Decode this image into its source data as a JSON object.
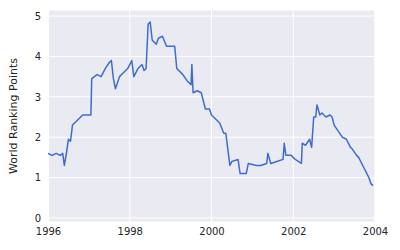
{
  "chart_data": {
    "type": "line",
    "y_label": "World Ranking Points",
    "x": [
      1996.0,
      1996.1,
      1996.2,
      1996.3,
      1996.36,
      1996.4,
      1996.45,
      1996.5,
      1996.55,
      1996.6,
      1996.7,
      1996.85,
      1997.05,
      1997.07,
      1997.2,
      1997.3,
      1997.4,
      1997.5,
      1997.55,
      1997.6,
      1997.65,
      1997.75,
      1997.85,
      1997.95,
      1998.05,
      1998.1,
      1998.2,
      1998.3,
      1998.35,
      1998.4,
      1998.45,
      1998.5,
      1998.55,
      1998.65,
      1998.7,
      1998.8,
      1998.9,
      1999.1,
      1999.15,
      1999.3,
      1999.4,
      1999.5,
      1999.52,
      1999.55,
      1999.65,
      1999.75,
      1999.85,
      1999.95,
      2000.0,
      2000.1,
      2000.2,
      2000.3,
      2000.35,
      2000.45,
      2000.5,
      2000.65,
      2000.7,
      2000.85,
      2000.9,
      2001.1,
      2001.2,
      2001.35,
      2001.38,
      2001.45,
      2001.6,
      2001.75,
      2001.78,
      2001.82,
      2001.95,
      2002.05,
      2002.2,
      2002.22,
      2002.3,
      2002.4,
      2002.45,
      2002.5,
      2002.55,
      2002.58,
      2002.65,
      2002.7,
      2002.8,
      2002.9,
      2002.95,
      2003.0,
      2003.1,
      2003.2,
      2003.3,
      2003.4,
      2003.45,
      2003.55,
      2003.6,
      2003.7,
      2003.75,
      2003.85,
      2003.9,
      2003.95
    ],
    "values": [
      1.6,
      1.55,
      1.6,
      1.55,
      1.6,
      1.3,
      1.6,
      1.95,
      1.9,
      2.3,
      2.4,
      2.55,
      2.55,
      3.45,
      3.55,
      3.5,
      3.7,
      3.85,
      3.9,
      3.45,
      3.2,
      3.5,
      3.6,
      3.7,
      3.9,
      3.5,
      3.7,
      3.8,
      3.65,
      3.7,
      4.8,
      4.85,
      4.4,
      4.3,
      4.45,
      4.5,
      4.25,
      4.25,
      3.7,
      3.55,
      3.4,
      3.3,
      3.8,
      3.1,
      3.15,
      3.1,
      2.7,
      2.7,
      2.55,
      2.45,
      2.35,
      2.1,
      2.1,
      1.3,
      1.4,
      1.45,
      1.1,
      1.1,
      1.35,
      1.3,
      1.3,
      1.35,
      1.6,
      1.35,
      1.4,
      1.45,
      1.85,
      1.55,
      1.55,
      1.45,
      1.35,
      1.85,
      1.8,
      1.95,
      1.75,
      2.5,
      2.5,
      2.8,
      2.55,
      2.6,
      2.5,
      2.55,
      2.5,
      2.3,
      2.15,
      2.0,
      1.95,
      1.75,
      1.7,
      1.55,
      1.5,
      1.3,
      1.2,
      1.0,
      0.85,
      0.8
    ],
    "color": "#3f6ccf",
    "xlim": [
      1996,
      2004
    ],
    "xticks": [
      1996,
      1998,
      2000,
      2002,
      2004
    ],
    "ylim": [
      -0.1,
      5.15
    ],
    "yticks": [
      0,
      1,
      2,
      3,
      4,
      5
    ],
    "grid": true
  }
}
